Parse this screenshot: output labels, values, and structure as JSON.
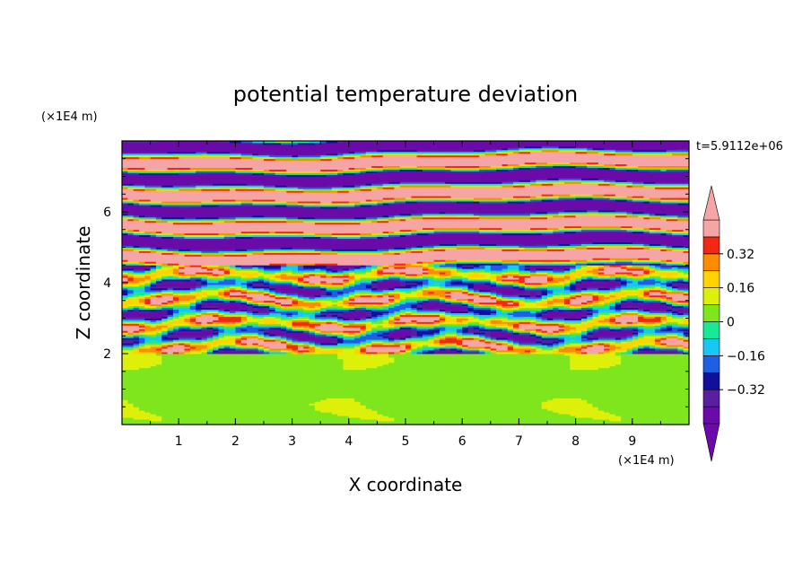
{
  "chart_data": {
    "type": "heatmap",
    "title": "potential temperature deviation",
    "xlabel": "X coordinate",
    "ylabel": "Z coordinate",
    "x_unit": "(×1E4 m)",
    "z_unit": "(×1E4 m)",
    "time_label": "t=5.9112e+06",
    "xlim": [
      0,
      10
    ],
    "ylim": [
      0,
      8
    ],
    "x_ticks": [
      1,
      2,
      3,
      4,
      5,
      6,
      7,
      8,
      9
    ],
    "y_ticks": [
      2,
      4,
      6
    ],
    "colorbar": {
      "levels": [
        -0.48,
        -0.4,
        -0.32,
        -0.24,
        -0.16,
        -0.08,
        0,
        0.08,
        0.16,
        0.24,
        0.32,
        0.4,
        0.48
      ],
      "tick_values": [
        0.32,
        0.16,
        0,
        -0.16,
        -0.32
      ],
      "tick_labels": [
        "0.32",
        "0.16",
        "0",
        "−0.16",
        "−0.32"
      ],
      "colors": [
        "#6a0aa8",
        "#5a1fa0",
        "#10109a",
        "#1e5fe6",
        "#19c8f2",
        "#19e896",
        "#7fe61e",
        "#dcf00a",
        "#ffd200",
        "#ff8c00",
        "#f02814",
        "#f5a5a5"
      ],
      "extend": "both"
    },
    "color_scale": {
      "under": "#6a0aa8",
      "over": "#f5a5a5"
    }
  },
  "axes": {
    "x_tick_labels": [
      "1",
      "2",
      "3",
      "4",
      "5",
      "6",
      "7",
      "8",
      "9"
    ],
    "y_tick_labels": [
      "2",
      "4",
      "6"
    ]
  }
}
